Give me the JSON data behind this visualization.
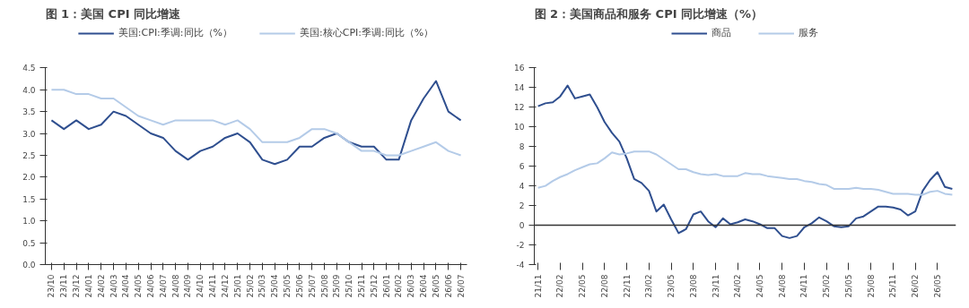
{
  "chart_data": [
    {
      "type": "line",
      "title": "图 1：美国 CPI 同比增速",
      "categories": [
        "23/10",
        "23/11",
        "23/12",
        "24/01",
        "24/02",
        "24/03",
        "24/04",
        "24/05",
        "24/06",
        "24/07",
        "24/08",
        "24/09",
        "24/10",
        "24/11",
        "24/12",
        "25/01",
        "25/02",
        "25/03",
        "25/04",
        "25/05",
        "25/06",
        "25/07",
        "25/08",
        "25/09",
        "25/10",
        "25/11",
        "25/12",
        "26/01",
        "26/02",
        "26/03",
        "26/04",
        "26/05",
        "26/06",
        "26/07"
      ],
      "series": [
        {
          "name": "美国:CPI:季调:同比（%）",
          "color": "#2f4f8f",
          "values": [
            3.3,
            3.1,
            3.3,
            3.1,
            3.2,
            3.5,
            3.4,
            3.2,
            3.0,
            2.9,
            2.6,
            2.4,
            2.6,
            2.7,
            2.9,
            3.0,
            2.8,
            2.4,
            2.3,
            2.4,
            2.7,
            2.7,
            2.9,
            3.0,
            2.8,
            2.7,
            2.7,
            2.4,
            2.4,
            3.3,
            3.8,
            4.2,
            3.5,
            3.3
          ]
        },
        {
          "name": "美国:核心CPI:季调:同比（%）",
          "color": "#b4cbe8",
          "values": [
            4.0,
            4.0,
            3.9,
            3.9,
            3.8,
            3.8,
            3.6,
            3.4,
            3.3,
            3.2,
            3.3,
            3.3,
            3.3,
            3.3,
            3.2,
            3.3,
            3.1,
            2.8,
            2.8,
            2.8,
            2.9,
            3.1,
            3.1,
            3.0,
            2.8,
            2.6,
            2.6,
            2.5,
            2.5,
            2.6,
            2.7,
            2.8,
            2.6,
            2.5
          ]
        }
      ],
      "ylim": [
        0,
        4.5
      ],
      "yticks": [
        {
          "value": 0,
          "label": "0.0"
        },
        {
          "value": 0.5,
          "label": "0.5"
        },
        {
          "value": 1,
          "label": "1.0"
        },
        {
          "value": 1.5,
          "label": "1.5"
        },
        {
          "value": 2,
          "label": "2.0"
        },
        {
          "value": 2.5,
          "label": "2.5"
        },
        {
          "value": 3,
          "label": "3.0"
        },
        {
          "value": 3.5,
          "label": "3.5"
        },
        {
          "value": 4,
          "label": "4.0"
        },
        {
          "value": 4.5,
          "label": "4.5"
        }
      ],
      "grid": false,
      "legend": "top"
    },
    {
      "type": "line",
      "title": "图 2：美国商品和服务 CPI 同比增速（%）",
      "categories": [
        "21/11",
        null,
        null,
        "22/02",
        null,
        null,
        "22/05",
        null,
        null,
        "22/08",
        null,
        null,
        "22/11",
        null,
        null,
        "23/02",
        null,
        null,
        "23/05",
        null,
        null,
        "23/08",
        null,
        null,
        "23/11",
        null,
        null,
        "24/02",
        null,
        null,
        "24/05",
        null,
        null,
        "24/08",
        null,
        null,
        "24/11",
        null,
        null,
        "25/02",
        null,
        null,
        "25/05",
        null,
        null,
        "25/08",
        null,
        null,
        "25/11",
        null,
        null,
        "26/02",
        null,
        null,
        "26/05",
        null,
        null
      ],
      "series": [
        {
          "name": "商品",
          "color": "#2f4f8f",
          "values": [
            12.1,
            12.4,
            12.5,
            13.1,
            14.2,
            12.9,
            13.1,
            13.3,
            12.0,
            10.5,
            9.4,
            8.5,
            6.8,
            4.7,
            4.3,
            3.5,
            1.4,
            2.1,
            0.6,
            -0.8,
            -0.4,
            1.1,
            1.4,
            0.4,
            -0.2,
            0.7,
            0.1,
            0.3,
            0.6,
            0.4,
            0.1,
            -0.3,
            -0.3,
            -1.1,
            -1.3,
            -1.1,
            -0.2,
            0.2,
            0.8,
            0.4,
            -0.1,
            -0.2,
            -0.1,
            0.7,
            0.9,
            1.4,
            1.9,
            1.9,
            1.8,
            1.6,
            1.0,
            1.4,
            3.5,
            4.6,
            5.4,
            3.9,
            3.7
          ]
        },
        {
          "name": "服务",
          "color": "#b4cbe8",
          "values": [
            3.8,
            4.0,
            4.5,
            4.9,
            5.2,
            5.6,
            5.9,
            6.2,
            6.3,
            6.8,
            7.4,
            7.2,
            7.3,
            7.5,
            7.5,
            7.5,
            7.2,
            6.7,
            6.2,
            5.7,
            5.7,
            5.4,
            5.2,
            5.1,
            5.2,
            5.0,
            5.0,
            5.0,
            5.3,
            5.2,
            5.2,
            5.0,
            4.9,
            4.8,
            4.7,
            4.7,
            4.5,
            4.4,
            4.2,
            4.1,
            3.7,
            3.7,
            3.7,
            3.8,
            3.7,
            3.7,
            3.6,
            3.4,
            3.2,
            3.2,
            3.2,
            3.1,
            3.1,
            3.4,
            3.5,
            3.2,
            3.1
          ]
        }
      ],
      "ylim": [
        -4,
        16
      ],
      "yticks": [
        -4,
        -2,
        0,
        2,
        4,
        6,
        8,
        10,
        12,
        14,
        16
      ],
      "ref_lines": [
        {
          "axis": "y",
          "value": 0,
          "color": "#333333"
        }
      ],
      "grid": false,
      "legend": "top"
    }
  ]
}
